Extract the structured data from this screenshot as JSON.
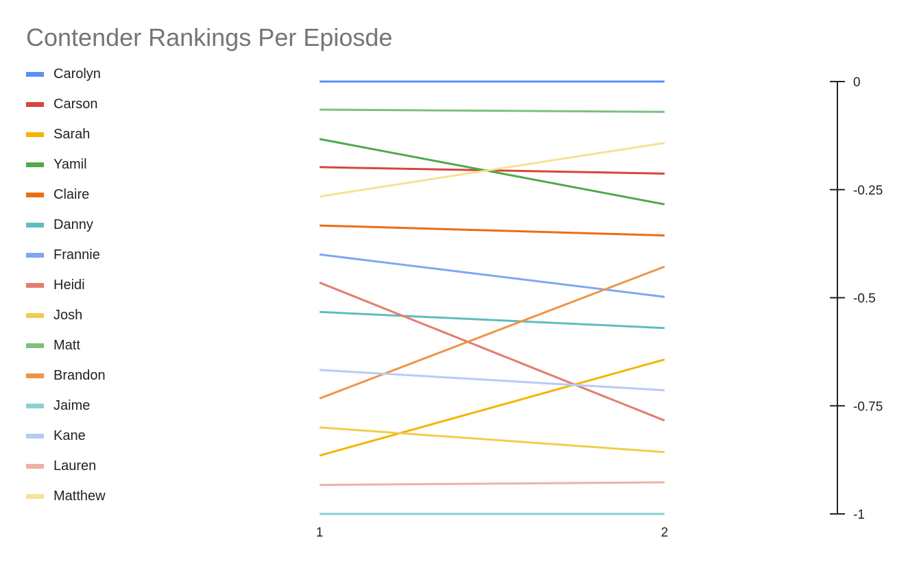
{
  "chart_data": {
    "type": "line",
    "title": "Contender Rankings Per Epiosde",
    "xlabel": "",
    "ylabel": "",
    "x": [
      "1",
      "2"
    ],
    "ylim": [
      -1,
      0
    ],
    "y_ticks": [
      "0",
      "-0.25",
      "-0.5",
      "-0.75",
      "-1"
    ],
    "y_tick_values": [
      0,
      -0.25,
      -0.5,
      -0.75,
      -1
    ],
    "y_axis_position": "right",
    "grid": false,
    "legend_position": "left",
    "series": [
      {
        "name": "Carolyn",
        "color": "#5b8ff9",
        "values": [
          0,
          0
        ]
      },
      {
        "name": "Carson",
        "color": "#d8453a",
        "values": [
          -0.198,
          -0.213
        ]
      },
      {
        "name": "Sarah",
        "color": "#f4b400",
        "values": [
          -0.865,
          -0.643
        ]
      },
      {
        "name": "Yamil",
        "color": "#50a94a",
        "values": [
          -0.133,
          -0.284
        ]
      },
      {
        "name": "Claire",
        "color": "#ee6c10",
        "values": [
          -0.333,
          -0.356
        ]
      },
      {
        "name": "Danny",
        "color": "#5fbcbf",
        "values": [
          -0.533,
          -0.57
        ]
      },
      {
        "name": "Frannie",
        "color": "#7ea6f6",
        "values": [
          -0.4,
          -0.498
        ]
      },
      {
        "name": "Heidi",
        "color": "#e37b6e",
        "values": [
          -0.465,
          -0.784
        ]
      },
      {
        "name": "Josh",
        "color": "#f2cd4b",
        "values": [
          -0.8,
          -0.857
        ]
      },
      {
        "name": "Matt",
        "color": "#7cc07c",
        "values": [
          -0.065,
          -0.07
        ]
      },
      {
        "name": "Brandon",
        "color": "#ef9345",
        "values": [
          -0.733,
          -0.428
        ]
      },
      {
        "name": "Jaime",
        "color": "#8bd1d0",
        "values": [
          -1,
          -1
        ]
      },
      {
        "name": "Kane",
        "color": "#b8cbf7",
        "values": [
          -0.667,
          -0.714
        ]
      },
      {
        "name": "Lauren",
        "color": "#ecb2a8",
        "values": [
          -0.933,
          -0.927
        ]
      },
      {
        "name": "Matthew",
        "color": "#f7e195",
        "values": [
          -0.266,
          -0.142
        ]
      }
    ]
  }
}
